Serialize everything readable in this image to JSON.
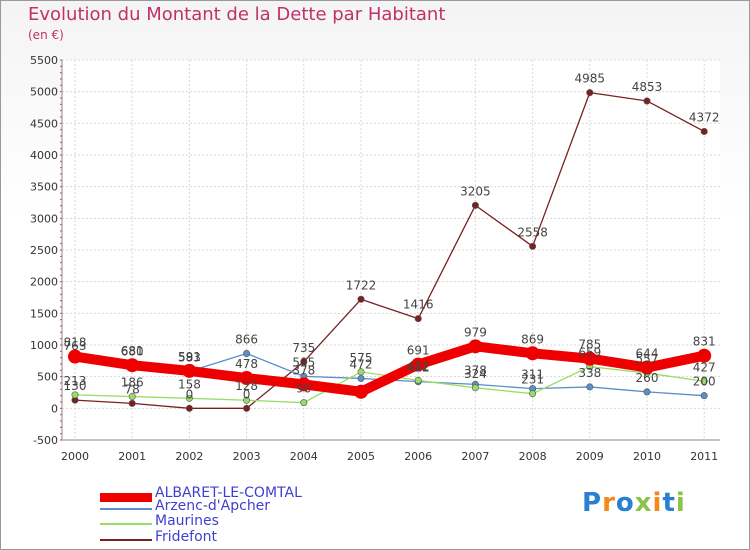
{
  "title": "Evolution du Montant de la Dette par Habitant",
  "subtitle": "(en €)",
  "logo": "Proxiti",
  "chart_data": {
    "type": "line",
    "x": [
      "2000",
      "2001",
      "2002",
      "2003",
      "2004",
      "2005",
      "2006",
      "2007",
      "2008",
      "2009",
      "2010",
      "2011"
    ],
    "ylim": [
      -500,
      5500
    ],
    "yticks": [
      "-500",
      "0",
      "500",
      "1000",
      "1500",
      "2000",
      "2500",
      "3000",
      "3500",
      "4000",
      "4500",
      "5000",
      "5500"
    ],
    "grid": true,
    "legend_position": "bottom-left",
    "series": [
      {
        "name": "ALBARET-LE-COMTAL",
        "color": "#ee0000",
        "values": [
          818,
          681,
          591,
          478,
          378,
          262,
          691,
          979,
          869,
          785,
          644,
          831
        ],
        "labels": [
          "818",
          "681",
          "591",
          "478",
          "378",
          "",
          "691",
          "979",
          "869",
          "785",
          "644",
          "831"
        ]
      },
      {
        "name": "Arzenc-d'Apcher",
        "color": "#5a8fc8",
        "values": [
          763,
          680,
          583,
          866,
          505,
          472,
          422,
          378,
          311,
          338,
          260,
          200
        ],
        "labels": [
          "763",
          "680",
          "583",
          "866",
          "505",
          "472",
          "422",
          "378",
          "311",
          "338",
          "260",
          "200"
        ]
      },
      {
        "name": "Maurines",
        "color": "#99dd66",
        "values": [
          213,
          186,
          158,
          128,
          90,
          575,
          442,
          324,
          231,
          659,
          557,
          427
        ],
        "labels": [
          "213",
          "186",
          "158",
          "128",
          "90",
          "575",
          "442",
          "324",
          "231",
          "659",
          "557",
          "427"
        ]
      },
      {
        "name": "Fridefont",
        "color": "#7a2020",
        "values": [
          130,
          78,
          0,
          0,
          735,
          1722,
          1416,
          3205,
          2558,
          4985,
          4853,
          4372
        ],
        "labels": [
          "130",
          "78",
          "0",
          "0",
          "735",
          "1722",
          "1416",
          "3205",
          "2558",
          "4985",
          "4853",
          "4372"
        ]
      }
    ]
  }
}
